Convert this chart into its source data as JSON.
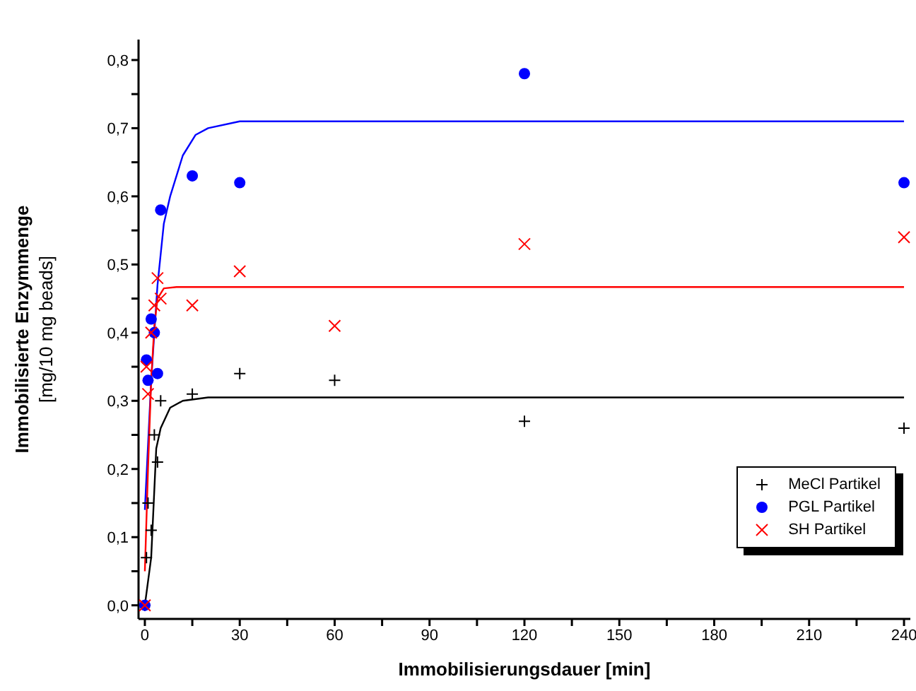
{
  "chart_data": {
    "type": "scatter",
    "xlabel": "Immobilisierungsdauer [min]",
    "ylabel": "Immobilisierte Enzymmenge\n[mg/10 mg beads]",
    "xlim": [
      -2,
      242
    ],
    "ylim": [
      -0.02,
      0.83
    ],
    "xticks": [
      0,
      {
        "value": 15,
        "label": null
      },
      30,
      {
        "value": 45,
        "label": null
      },
      60,
      {
        "value": 75,
        "label": null
      },
      90,
      {
        "value": 105,
        "label": null
      },
      120,
      {
        "value": 135,
        "label": null
      },
      150,
      {
        "value": 165,
        "label": null
      },
      180,
      {
        "value": 195,
        "label": null
      },
      210,
      {
        "value": 225,
        "label": null
      },
      240
    ],
    "yticks": [
      {
        "value": 0,
        "label": "0,0"
      },
      {
        "value": 0.05,
        "label": null
      },
      {
        "value": 0.1,
        "label": "0,1"
      },
      {
        "value": 0.15,
        "label": null
      },
      {
        "value": 0.2,
        "label": "0,2"
      },
      {
        "value": 0.25,
        "label": null
      },
      {
        "value": 0.3,
        "label": "0,3"
      },
      {
        "value": 0.35,
        "label": null
      },
      {
        "value": 0.4,
        "label": "0,4"
      },
      {
        "value": 0.45,
        "label": null
      },
      {
        "value": 0.5,
        "label": "0,5"
      },
      {
        "value": 0.55,
        "label": null
      },
      {
        "value": 0.6,
        "label": "0,6"
      },
      {
        "value": 0.65,
        "label": null
      },
      {
        "value": 0.7,
        "label": "0,7"
      },
      {
        "value": 0.75,
        "label": null
      },
      {
        "value": 0.8,
        "label": "0,8"
      }
    ],
    "grid": false,
    "legend": "bottom right",
    "series": [
      {
        "name": "MeCl Partikel",
        "color": "#000000",
        "marker": "cross",
        "x": [
          0,
          0.5,
          1,
          2,
          3,
          4,
          5,
          15,
          30,
          60,
          120,
          240
        ],
        "values": [
          0,
          0.07,
          0.15,
          0.11,
          0.25,
          0.21,
          0.3,
          0.31,
          0.34,
          0.33,
          0.27,
          0.26
        ]
      },
      {
        "name": "PGL Partikel",
        "color": "#0000ff",
        "marker": "circle",
        "x": [
          0,
          0.5,
          1,
          2,
          3,
          4,
          5,
          15,
          30,
          120,
          240
        ],
        "values": [
          0,
          0.36,
          0.33,
          0.42,
          0.4,
          0.34,
          0.58,
          0.63,
          0.62,
          0.78,
          0.62
        ]
      },
      {
        "name": "SH Partikel",
        "color": "#ff0000",
        "marker": "x",
        "x": [
          0,
          0.5,
          1,
          2,
          3,
          4,
          5,
          15,
          30,
          60,
          120,
          240
        ],
        "values": [
          0,
          0.35,
          0.31,
          0.4,
          0.44,
          0.48,
          0.45,
          0.44,
          0.49,
          0.41,
          0.53,
          0.54
        ]
      },
      {
        "type": "line",
        "color": "#000000",
        "marker": "none",
        "x": [
          0,
          2,
          3.6,
          5,
          8,
          12,
          20,
          240
        ],
        "values": [
          0,
          0.07,
          0.23,
          0.26,
          0.29,
          0.3,
          0.305,
          0.305
        ]
      },
      {
        "type": "line",
        "color": "#0000ff",
        "marker": "none",
        "x": [
          0,
          2,
          4,
          6,
          8,
          12,
          16,
          20,
          30,
          240
        ],
        "values": [
          0.14,
          0.33,
          0.47,
          0.56,
          0.6,
          0.66,
          0.69,
          0.7,
          0.71,
          0.71
        ]
      },
      {
        "type": "line",
        "color": "#ff0000",
        "marker": "none",
        "x": [
          0,
          1,
          2,
          3,
          4,
          6,
          10,
          240
        ],
        "values": [
          0.05,
          0.2,
          0.33,
          0.41,
          0.45,
          0.465,
          0.467,
          0.467
        ]
      }
    ]
  }
}
